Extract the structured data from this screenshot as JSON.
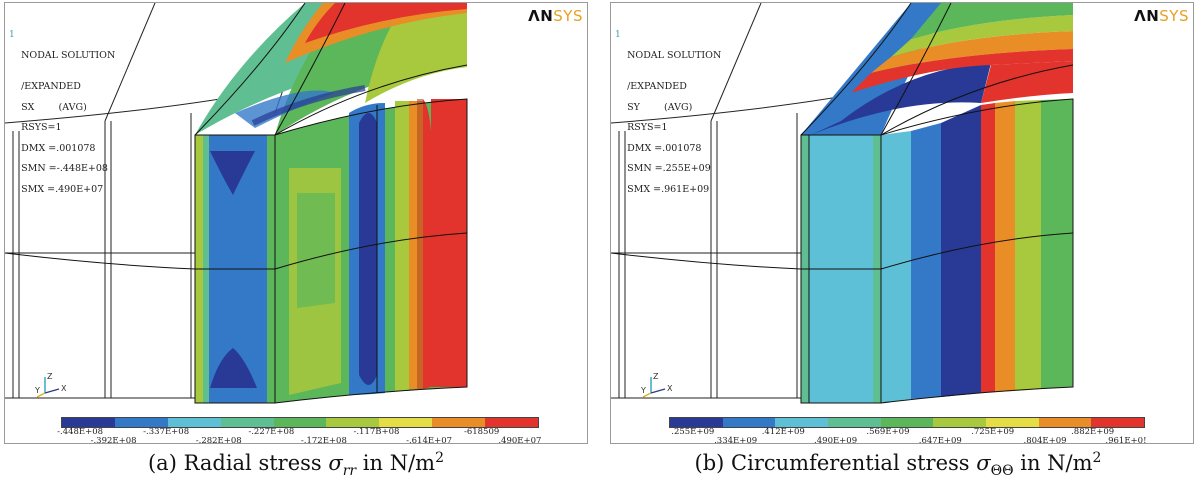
{
  "panels": [
    {
      "step_label": "1",
      "title": "NODAL SOLUTION",
      "info_lines": [
        "/EXPANDED",
        "SX        (AVG)",
        "RSYS=1",
        "DMX =.001078",
        "SMN =-.448E+08",
        "SMX =.490E+07"
      ],
      "logo_main": "ΛN",
      "logo_accent": "SYS",
      "axis_y": "Y",
      "axis_z": "Z",
      "axis_x": "X",
      "legend_colors": [
        "#283a96",
        "#3479c8",
        "#5ec0d6",
        "#5fbf92",
        "#5cb65a",
        "#a8c83d",
        "#e5dd45",
        "#e98e27",
        "#e2332c"
      ],
      "legend_ticks": [
        "-.448E+08",
        "-.392E+08",
        "-.337E+08",
        "-.282E+08",
        "-.227E+08",
        "-.172E+08",
        "-.117B+08",
        "-.614E+07",
        "-618509",
        ".490E+07"
      ]
    },
    {
      "step_label": "1",
      "title": "NODAL SOLUTION",
      "info_lines": [
        "/EXPANDED",
        "SY        (AVG)",
        "RSYS=1",
        "DMX =.001078",
        "SMN =.255E+09",
        "SMX =.961E+09"
      ],
      "logo_main": "ΛN",
      "logo_accent": "SYS",
      "axis_y": "Y",
      "axis_z": "Z",
      "axis_x": "X",
      "legend_colors": [
        "#283a96",
        "#3479c8",
        "#5ec0d6",
        "#5fbf92",
        "#5cb65a",
        "#a8c83d",
        "#e5dd45",
        "#e98e27",
        "#e2332c"
      ],
      "legend_ticks": [
        ".255E+09",
        ".334E+09",
        ".412E+09",
        ".490E+09",
        ".569E+09",
        ".647E+09",
        ".725E+09",
        ".804E+09",
        ".882E+09",
        ".961E+0!"
      ]
    }
  ],
  "captions": [
    {
      "prefix": "(a)  Radial stress ",
      "sym": "σ",
      "sub": "rr",
      "mid": " in N/m",
      "sup": "2"
    },
    {
      "prefix": "(b)  Circumferential stress ",
      "sym": "σ",
      "sub": "ΘΘ",
      "mid": " in N/m",
      "sup": "2"
    }
  ]
}
